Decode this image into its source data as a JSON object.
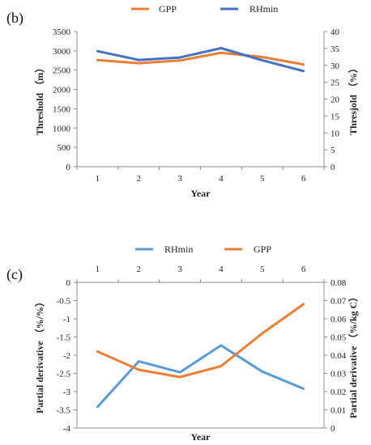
{
  "chart_data": [
    {
      "type": "line",
      "panel_label": "(b)",
      "legend_position": "top",
      "x": [
        1,
        2,
        3,
        4,
        5,
        6
      ],
      "x_ticks": [
        "1",
        "2",
        "3",
        "4",
        "5",
        "6"
      ],
      "xlabel": "Year",
      "ylabel": "Threshold （m）",
      "y2label": "Thresjold （%）",
      "ylim": [
        0,
        3500
      ],
      "y2lim": [
        0,
        40
      ],
      "y_ticks": [
        "0",
        "500",
        "1000",
        "1500",
        "2000",
        "2500",
        "3000",
        "3500"
      ],
      "y2_ticks": [
        "0",
        "5",
        "10",
        "15",
        "20",
        "25",
        "30",
        "35",
        "40"
      ],
      "grid": false,
      "series": [
        {
          "name": "GPP",
          "axis": "left",
          "color": "#ED7D31",
          "values": [
            2760,
            2680,
            2750,
            2950,
            2840,
            2650
          ]
        },
        {
          "name": "RHmin",
          "axis": "right",
          "color": "#4472C4",
          "values": [
            34.2,
            31.6,
            32.3,
            35.1,
            31.5,
            28.3
          ]
        }
      ]
    },
    {
      "type": "line",
      "panel_label": "(c)",
      "legend_position": "top",
      "x": [
        1,
        2,
        3,
        4,
        5,
        6
      ],
      "x_ticks": [
        "1",
        "2",
        "3",
        "4",
        "5",
        "6"
      ],
      "xlabel": "Year",
      "ylabel": "Partial derivative （%/%）",
      "y2label": "Partial derivative （%/kg C）",
      "ylim": [
        -4,
        0
      ],
      "y2lim": [
        0,
        0.08
      ],
      "y_ticks": [
        "-4",
        "-3.5",
        "-3",
        "-2.5",
        "-2",
        "-1.5",
        "-1",
        "-0.5",
        "0"
      ],
      "y2_ticks": [
        "0",
        "0.01",
        "0.02",
        "0.03",
        "0.04",
        "0.05",
        "0.06",
        "0.07",
        "0.08"
      ],
      "grid": false,
      "series": [
        {
          "name": "RHmin",
          "axis": "left",
          "color": "#5B9BD5",
          "values": [
            -3.42,
            -2.17,
            -2.47,
            -1.73,
            -2.45,
            -2.92
          ]
        },
        {
          "name": "GPP",
          "axis": "right",
          "color": "#ED7D31",
          "values": [
            0.042,
            0.032,
            0.028,
            0.034,
            0.052,
            0.068
          ]
        }
      ]
    }
  ]
}
